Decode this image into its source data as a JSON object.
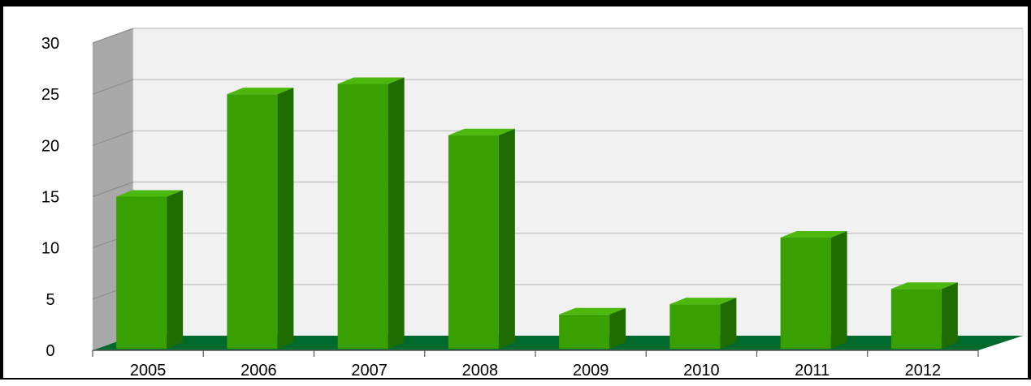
{
  "chart_data": {
    "type": "bar",
    "categories": [
      "2005",
      "2006",
      "2007",
      "2008",
      "2009",
      "2010",
      "2011",
      "2012"
    ],
    "values": [
      15,
      25,
      26,
      21,
      3.5,
      4.5,
      11,
      6
    ],
    "ylim": [
      0,
      30
    ],
    "yticks": [
      "0",
      "5",
      "10",
      "15",
      "20",
      "25",
      "30"
    ],
    "grid": true,
    "style": "3d-column",
    "colors": {
      "bar_front": "#38a000",
      "bar_top": "#4cb80e",
      "bar_side": "#1f6c00",
      "floor": "#006a2c",
      "back_wall": "#f1f1f1",
      "side_wall": "#a9a9a9",
      "gridline": "#c8c8c8"
    }
  }
}
